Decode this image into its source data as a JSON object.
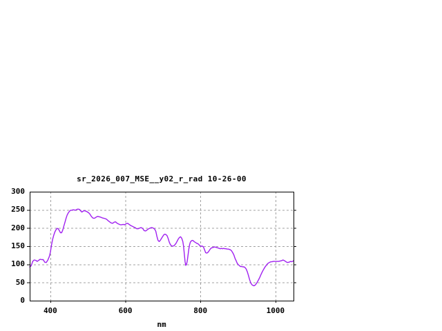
{
  "chart_data": {
    "type": "line",
    "title": "sr_2026_007_MSE__y02_r_rad 10-26-00",
    "xlabel": "nm",
    "ylabel": "",
    "x_range": [
      345,
      1048
    ],
    "y_range": [
      0,
      300
    ],
    "x_ticks": [
      400,
      600,
      800,
      1000
    ],
    "y_ticks": [
      0,
      50,
      100,
      150,
      200,
      250,
      300
    ],
    "grid": true,
    "legend": "none",
    "colors": {
      "line": "#a020f0",
      "grid": "#a0a0a0",
      "axis": "#000000",
      "background": "#ffffff",
      "text": "#000000"
    },
    "series": [
      {
        "name": "sr_2026_007_MSE__y02_r_rad 10-26-00",
        "x": [
          345,
          349,
          353,
          357,
          361,
          365,
          369,
          373,
          377,
          381,
          385,
          389,
          393,
          397,
          400,
          403,
          406,
          409,
          412,
          415,
          418,
          421,
          424,
          427,
          430,
          433,
          436,
          439,
          442,
          445,
          448,
          451,
          454,
          457,
          460,
          463,
          466,
          469,
          472,
          475,
          478,
          481,
          484,
          487,
          490,
          493,
          496,
          499,
          502,
          505,
          508,
          511,
          514,
          518,
          522,
          526,
          530,
          534,
          538,
          542,
          546,
          550,
          554,
          558,
          562,
          566,
          570,
          574,
          578,
          582,
          586,
          590,
          594,
          598,
          602,
          606,
          610,
          614,
          618,
          622,
          626,
          630,
          634,
          638,
          642,
          646,
          650,
          654,
          658,
          662,
          666,
          670,
          674,
          678,
          681,
          684,
          687,
          690,
          693,
          696,
          699,
          702,
          705,
          708,
          711,
          714,
          717,
          720,
          723,
          726,
          729,
          732,
          735,
          738,
          741,
          744,
          747,
          750,
          753,
          755,
          757,
          759,
          761,
          763,
          765,
          767,
          769,
          771,
          773,
          775,
          778,
          781,
          784,
          787,
          790,
          793,
          796,
          799,
          802,
          805,
          808,
          811,
          814,
          817,
          820,
          823,
          826,
          829,
          832,
          835,
          838,
          841,
          844,
          847,
          850,
          853,
          856,
          859,
          862,
          865,
          868,
          871,
          874,
          877,
          880,
          883,
          886,
          889,
          892,
          895,
          898,
          901,
          904,
          907,
          910,
          913,
          916,
          919,
          922,
          925,
          928,
          931,
          934,
          937,
          940,
          943,
          946,
          949,
          952,
          955,
          958,
          961,
          964,
          967,
          970,
          973,
          976,
          979,
          982,
          985,
          988,
          991,
          994,
          997,
          1000,
          1004,
          1008,
          1012,
          1016,
          1020,
          1024,
          1028,
          1032,
          1036,
          1040,
          1044,
          1048
        ],
        "y": [
          93,
          96,
          108,
          112,
          111,
          108,
          111,
          114,
          113,
          113,
          106,
          105,
          111,
          121,
          133,
          152,
          168,
          180,
          189,
          195,
          199,
          198,
          193,
          187,
          187,
          194,
          205,
          216,
          227,
          236,
          242,
          246,
          249,
          249,
          250,
          250,
          249,
          250,
          252,
          252,
          251,
          247,
          244,
          246,
          248,
          247,
          246,
          244,
          242,
          239,
          234,
          230,
          227,
          227,
          230,
          232,
          231,
          230,
          228,
          227,
          226,
          224,
          220,
          217,
          214,
          213,
          216,
          217,
          213,
          211,
          209,
          209,
          210,
          209,
          212,
          213,
          210,
          207,
          205,
          203,
          201,
          198,
          198,
          200,
          201,
          199,
          193,
          192,
          195,
          198,
          200,
          201,
          200,
          197,
          191,
          177,
          166,
          163,
          166,
          171,
          176,
          181,
          183,
          182,
          179,
          171,
          161,
          154,
          151,
          150,
          151,
          154,
          158,
          164,
          170,
          174,
          176,
          172,
          163,
          150,
          128,
          107,
          97,
          100,
          110,
          126,
          142,
          154,
          161,
          164,
          166,
          165,
          162,
          160,
          158,
          157,
          154,
          151,
          150,
          150,
          148,
          140,
          132,
          131,
          133,
          137,
          142,
          145,
          146,
          147,
          148,
          147,
          146,
          145,
          144,
          143,
          144,
          143,
          144,
          143,
          143,
          142,
          142,
          141,
          140,
          137,
          132,
          126,
          117,
          110,
          103,
          99,
          96,
          94,
          94,
          93,
          93,
          91,
          87,
          79,
          69,
          58,
          49,
          44,
          42,
          41,
          43,
          47,
          52,
          58,
          64,
          71,
          78,
          84,
          89,
          94,
          98,
          102,
          104,
          106,
          107,
          107,
          108,
          108,
          108,
          108,
          108,
          109,
          110,
          112,
          110,
          107,
          105,
          106,
          108,
          107,
          110
        ]
      }
    ]
  }
}
